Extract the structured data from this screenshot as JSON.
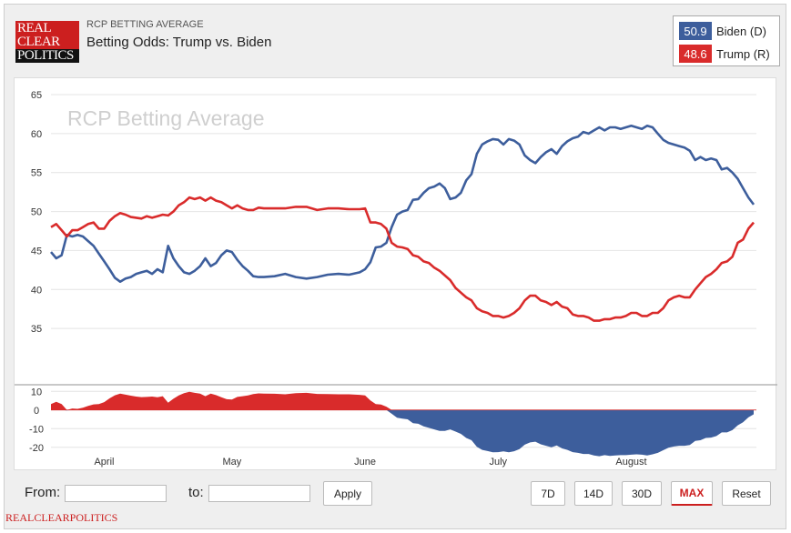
{
  "header": {
    "logo_line1": "REAL",
    "logo_line2": "CLEAR",
    "logo_line3": "POLITICS",
    "supertitle": "RCP BETTING AVERAGE",
    "title": "Betting Odds: Trump vs. Biden"
  },
  "legend": [
    {
      "value": "50.9",
      "name": "Biden (D)",
      "color": "#3d5e9c"
    },
    {
      "value": "48.6",
      "name": "Trump (R)",
      "color": "#d92b2b"
    }
  ],
  "chart_data": {
    "type": "line",
    "watermark": "RCP Betting Average",
    "x_ticks": [
      "April",
      "May",
      "June",
      "July",
      "August"
    ],
    "y_ticks": [
      "65",
      "60",
      "55",
      "50",
      "45",
      "40",
      "35"
    ],
    "ylim": [
      30,
      65
    ],
    "diff_ticks": [
      "10",
      "0",
      "-10",
      "-20"
    ],
    "diff_ylim": [
      -25,
      15
    ],
    "x": [
      0,
      10,
      20,
      30,
      40,
      50,
      60,
      70,
      80,
      90,
      100,
      110,
      120,
      130,
      140,
      150,
      160
    ],
    "series": [
      {
        "name": "Biden (D)",
        "color": "#3d5e9c",
        "points": [
          [
            0,
            44.8
          ],
          [
            1,
            44
          ],
          [
            2,
            44.4
          ],
          [
            3,
            47
          ],
          [
            4,
            46.8
          ],
          [
            5,
            47
          ],
          [
            6,
            46.8
          ],
          [
            7,
            46.2
          ],
          [
            8,
            45.6
          ],
          [
            9,
            44.6
          ],
          [
            10,
            43.6
          ],
          [
            11,
            42.6
          ],
          [
            12,
            41.5
          ],
          [
            13,
            41
          ],
          [
            14,
            41.4
          ],
          [
            15,
            41.6
          ],
          [
            16,
            42
          ],
          [
            17,
            42.2
          ],
          [
            18,
            42.4
          ],
          [
            19,
            42
          ],
          [
            20,
            42.6
          ],
          [
            21,
            42.2
          ],
          [
            22,
            45.6
          ],
          [
            23,
            44
          ],
          [
            24,
            43
          ],
          [
            25,
            42.2
          ],
          [
            26,
            42
          ],
          [
            27,
            42.4
          ],
          [
            28,
            43
          ],
          [
            29,
            44
          ],
          [
            30,
            43
          ],
          [
            31,
            43.4
          ],
          [
            32,
            44.4
          ],
          [
            33,
            45
          ],
          [
            34,
            44.8
          ],
          [
            35,
            43.8
          ],
          [
            36,
            43
          ],
          [
            37,
            42.4
          ],
          [
            38,
            41.7
          ],
          [
            39,
            41.6
          ],
          [
            40,
            41.6
          ],
          [
            42,
            41.7
          ],
          [
            44,
            42
          ],
          [
            46,
            41.6
          ],
          [
            48,
            41.4
          ],
          [
            50,
            41.6
          ],
          [
            52,
            41.9
          ],
          [
            54,
            42
          ],
          [
            56,
            41.9
          ],
          [
            58,
            42.2
          ],
          [
            59,
            42.6
          ],
          [
            60,
            43.5
          ],
          [
            61,
            45.4
          ],
          [
            62,
            45.5
          ],
          [
            63,
            46
          ],
          [
            64,
            48
          ],
          [
            65,
            49.6
          ],
          [
            66,
            50
          ],
          [
            67,
            50.2
          ],
          [
            68,
            51.5
          ],
          [
            69,
            51.6
          ],
          [
            70,
            52.4
          ],
          [
            71,
            53
          ],
          [
            72,
            53.2
          ],
          [
            73,
            53.6
          ],
          [
            74,
            53
          ],
          [
            75,
            51.6
          ],
          [
            76,
            51.8
          ],
          [
            77,
            52.4
          ],
          [
            78,
            54
          ],
          [
            79,
            54.8
          ],
          [
            80,
            57.4
          ],
          [
            81,
            58.6
          ],
          [
            82,
            59
          ],
          [
            83,
            59.3
          ],
          [
            84,
            59.2
          ],
          [
            85,
            58.6
          ],
          [
            86,
            59.3
          ],
          [
            87,
            59.1
          ],
          [
            88,
            58.6
          ],
          [
            89,
            57.2
          ],
          [
            90,
            56.6
          ],
          [
            91,
            56.2
          ],
          [
            92,
            57
          ],
          [
            93,
            57.6
          ],
          [
            94,
            58
          ],
          [
            95,
            57.4
          ],
          [
            96,
            58.4
          ],
          [
            97,
            59
          ],
          [
            98,
            59.4
          ],
          [
            99,
            59.6
          ],
          [
            100,
            60.2
          ],
          [
            101,
            60
          ],
          [
            102,
            60.4
          ],
          [
            103,
            60.8
          ],
          [
            104,
            60.4
          ],
          [
            105,
            60.8
          ],
          [
            106,
            60.8
          ],
          [
            107,
            60.6
          ],
          [
            108,
            60.8
          ],
          [
            109,
            61
          ],
          [
            110,
            60.8
          ],
          [
            111,
            60.6
          ],
          [
            112,
            61
          ],
          [
            113,
            60.8
          ],
          [
            114,
            60
          ],
          [
            115,
            59.2
          ],
          [
            116,
            58.8
          ],
          [
            117,
            58.6
          ],
          [
            118,
            58.4
          ],
          [
            119,
            58.2
          ],
          [
            120,
            57.8
          ],
          [
            121,
            56.6
          ],
          [
            122,
            57
          ],
          [
            123,
            56.6
          ],
          [
            124,
            56.8
          ],
          [
            125,
            56.6
          ],
          [
            126,
            55.4
          ],
          [
            127,
            55.6
          ],
          [
            128,
            55
          ],
          [
            129,
            54.2
          ],
          [
            130,
            53
          ],
          [
            131,
            51.8
          ],
          [
            132,
            50.9
          ]
        ]
      },
      {
        "name": "Trump (R)",
        "color": "#d92b2b",
        "points": [
          [
            0,
            48
          ],
          [
            1,
            48.4
          ],
          [
            2,
            47.6
          ],
          [
            3,
            46.8
          ],
          [
            4,
            47.6
          ],
          [
            5,
            47.6
          ],
          [
            6,
            48
          ],
          [
            7,
            48.4
          ],
          [
            8,
            48.6
          ],
          [
            9,
            47.8
          ],
          [
            10,
            47.8
          ],
          [
            11,
            48.8
          ],
          [
            12,
            49.4
          ],
          [
            13,
            49.8
          ],
          [
            14,
            49.6
          ],
          [
            15,
            49.3
          ],
          [
            16,
            49.2
          ],
          [
            17,
            49.1
          ],
          [
            18,
            49.4
          ],
          [
            19,
            49.2
          ],
          [
            20,
            49.4
          ],
          [
            21,
            49.6
          ],
          [
            22,
            49.5
          ],
          [
            23,
            50
          ],
          [
            24,
            50.8
          ],
          [
            25,
            51.2
          ],
          [
            26,
            51.8
          ],
          [
            27,
            51.6
          ],
          [
            28,
            51.8
          ],
          [
            29,
            51.4
          ],
          [
            30,
            51.8
          ],
          [
            31,
            51.4
          ],
          [
            32,
            51.2
          ],
          [
            33,
            50.8
          ],
          [
            34,
            50.4
          ],
          [
            35,
            50.8
          ],
          [
            36,
            50.4
          ],
          [
            37,
            50.2
          ],
          [
            38,
            50.2
          ],
          [
            39,
            50.5
          ],
          [
            40,
            50.4
          ],
          [
            42,
            50.4
          ],
          [
            44,
            50.4
          ],
          [
            46,
            50.6
          ],
          [
            48,
            50.6
          ],
          [
            50,
            50.2
          ],
          [
            52,
            50.4
          ],
          [
            54,
            50.4
          ],
          [
            56,
            50.3
          ],
          [
            58,
            50.3
          ],
          [
            59,
            50.4
          ],
          [
            60,
            48.6
          ],
          [
            61,
            48.6
          ],
          [
            62,
            48.4
          ],
          [
            63,
            47.8
          ],
          [
            64,
            46
          ],
          [
            65,
            45.5
          ],
          [
            66,
            45.4
          ],
          [
            67,
            45.2
          ],
          [
            68,
            44.4
          ],
          [
            69,
            44.2
          ],
          [
            70,
            43.6
          ],
          [
            71,
            43.4
          ],
          [
            72,
            42.8
          ],
          [
            73,
            42.4
          ],
          [
            74,
            41.8
          ],
          [
            75,
            41.2
          ],
          [
            76,
            40.2
          ],
          [
            77,
            39.6
          ],
          [
            78,
            39
          ],
          [
            79,
            38.6
          ],
          [
            80,
            37.6
          ],
          [
            81,
            37.2
          ],
          [
            82,
            37
          ],
          [
            83,
            36.6
          ],
          [
            84,
            36.6
          ],
          [
            85,
            36.4
          ],
          [
            86,
            36.6
          ],
          [
            87,
            37
          ],
          [
            88,
            37.6
          ],
          [
            89,
            38.6
          ],
          [
            90,
            39.2
          ],
          [
            91,
            39.2
          ],
          [
            92,
            38.6
          ],
          [
            93,
            38.4
          ],
          [
            94,
            38
          ],
          [
            95,
            38.4
          ],
          [
            96,
            37.8
          ],
          [
            97,
            37.6
          ],
          [
            98,
            36.8
          ],
          [
            99,
            36.6
          ],
          [
            100,
            36.6
          ],
          [
            101,
            36.4
          ],
          [
            102,
            36
          ],
          [
            103,
            36
          ],
          [
            104,
            36.2
          ],
          [
            105,
            36.2
          ],
          [
            106,
            36.4
          ],
          [
            107,
            36.4
          ],
          [
            108,
            36.6
          ],
          [
            109,
            37
          ],
          [
            110,
            37
          ],
          [
            111,
            36.6
          ],
          [
            112,
            36.6
          ],
          [
            113,
            37
          ],
          [
            114,
            37
          ],
          [
            115,
            37.6
          ],
          [
            116,
            38.6
          ],
          [
            117,
            39
          ],
          [
            118,
            39.2
          ],
          [
            119,
            39
          ],
          [
            120,
            39
          ],
          [
            121,
            40
          ],
          [
            122,
            40.8
          ],
          [
            123,
            41.6
          ],
          [
            124,
            42
          ],
          [
            125,
            42.6
          ],
          [
            126,
            43.4
          ],
          [
            127,
            43.6
          ],
          [
            128,
            44.2
          ],
          [
            129,
            46
          ],
          [
            130,
            46.4
          ],
          [
            131,
            47.8
          ],
          [
            132,
            48.6
          ]
        ]
      }
    ]
  },
  "controls": {
    "from_label": "From:",
    "to_label": "to:",
    "apply_label": "Apply",
    "ranges": [
      "7D",
      "14D",
      "30D",
      "MAX"
    ],
    "active_range": "MAX",
    "reset_label": "Reset"
  },
  "footer": "REALCLEARPOLITICS"
}
